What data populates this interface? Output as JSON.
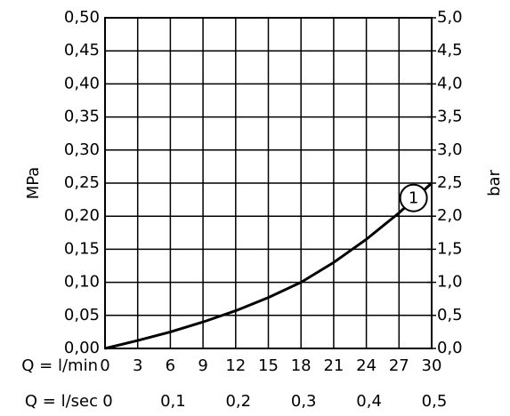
{
  "chart_data": {
    "type": "line",
    "x_label": "Q = l/min",
    "x2_label": "Q = l/sec",
    "y_label": "MPa",
    "y2_label": "bar",
    "series": [
      {
        "name": "1",
        "color": "#000000",
        "x": [
          0,
          3,
          6,
          9,
          12,
          15,
          18,
          21,
          24,
          27,
          30
        ],
        "values": [
          0,
          0.012,
          0.025,
          0.04,
          0.057,
          0.077,
          0.1,
          0.13,
          0.165,
          0.205,
          0.25
        ]
      }
    ],
    "xlim": [
      0,
      30
    ],
    "xticks": [
      0,
      3,
      6,
      9,
      12,
      15,
      18,
      21,
      24,
      27,
      30
    ],
    "x2lim": [
      0,
      0.5
    ],
    "x2ticks": [
      0,
      {
        "value": 0.1,
        "label": "0,1"
      },
      {
        "value": 0.2,
        "label": "0,2"
      },
      {
        "value": 0.3,
        "label": "0,3"
      },
      {
        "value": 0.4,
        "label": "0,4"
      },
      {
        "value": 0.5,
        "label": "0,5"
      }
    ],
    "ylim": [
      0,
      0.5
    ],
    "yticks": [
      {
        "value": 0,
        "label": "0,00"
      },
      {
        "value": 0.05,
        "label": "0,05"
      },
      {
        "value": 0.1,
        "label": "0,10"
      },
      {
        "value": 0.15,
        "label": "0,15"
      },
      {
        "value": 0.2,
        "label": "0,20"
      },
      {
        "value": 0.25,
        "label": "0,25"
      },
      {
        "value": 0.3,
        "label": "0,30"
      },
      {
        "value": 0.35,
        "label": "0,35"
      },
      {
        "value": 0.4,
        "label": "0,40"
      },
      {
        "value": 0.45,
        "label": "0,45"
      },
      {
        "value": 0.5,
        "label": "0,50"
      }
    ],
    "y2lim": [
      0,
      5
    ],
    "y2ticks": [
      {
        "value": 0,
        "label": "0,0"
      },
      {
        "value": 0.5,
        "label": "0,5"
      },
      {
        "value": 1,
        "label": "1,0"
      },
      {
        "value": 1.5,
        "label": "1,5"
      },
      {
        "value": 2,
        "label": "2,0"
      },
      {
        "value": 2.5,
        "label": "2,5"
      },
      {
        "value": 3,
        "label": "3,0"
      },
      {
        "value": 3.5,
        "label": "3,5"
      },
      {
        "value": 4,
        "label": "4,0"
      },
      {
        "value": 4.5,
        "label": "4,5"
      },
      {
        "value": 5,
        "label": "5,0"
      }
    ],
    "grid": true
  }
}
